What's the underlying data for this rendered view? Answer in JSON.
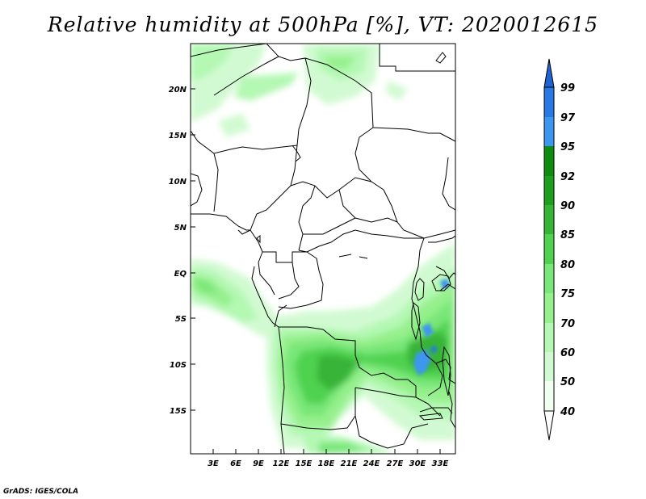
{
  "title": "Relative humidity at 500hPa [%], VT: 2020012615",
  "credit": "GrADS: IGES/COLA",
  "lat_labels": [
    "20N",
    "15N",
    "10N",
    "5N",
    "EQ",
    "5S",
    "10S",
    "15S"
  ],
  "lon_labels": [
    "3E",
    "6E",
    "9E",
    "12E",
    "15E",
    "18E",
    "21E",
    "24E",
    "27E",
    "30E",
    "33E"
  ],
  "colorbar": {
    "levels": [
      "99",
      "97",
      "95",
      "92",
      "90",
      "85",
      "80",
      "75",
      "70",
      "60",
      "50",
      "40"
    ],
    "colors": [
      "#1e64d2",
      "#2878e6",
      "#3c96f0",
      "#0f8c0f",
      "#1ea01e",
      "#37b437",
      "#50d250",
      "#78e678",
      "#96f08c",
      "#b4f8b4",
      "#d2fad2",
      "#f0fff0"
    ]
  }
}
